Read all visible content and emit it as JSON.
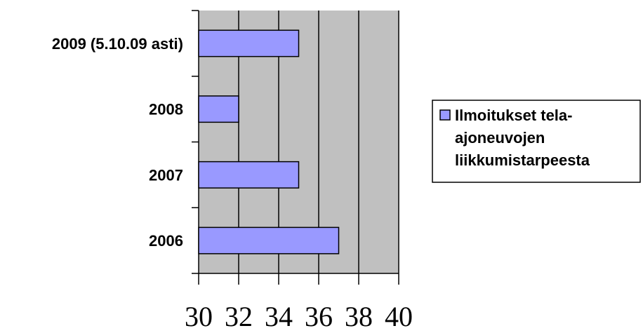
{
  "chart_data": {
    "type": "bar",
    "orientation": "horizontal",
    "categories": [
      "2009 (5.10.09 asti)",
      "2008",
      "2007",
      "2006"
    ],
    "series": [
      {
        "name": "Ilmoitukset tela-ajoneuvojen liikkumistarpeesta",
        "legend_lines": [
          "Ilmoitukset tela-",
          "ajoneuvojen",
          "liikkumistarpeesta"
        ],
        "values": [
          35,
          32,
          35,
          37
        ],
        "color": "#9999ff"
      }
    ],
    "xlim": [
      30,
      40
    ],
    "x_ticks": [
      "30",
      "32",
      "34",
      "36",
      "38",
      "40"
    ],
    "grid": true,
    "plot_background": "#c0c0c0",
    "legend_position": "right"
  }
}
